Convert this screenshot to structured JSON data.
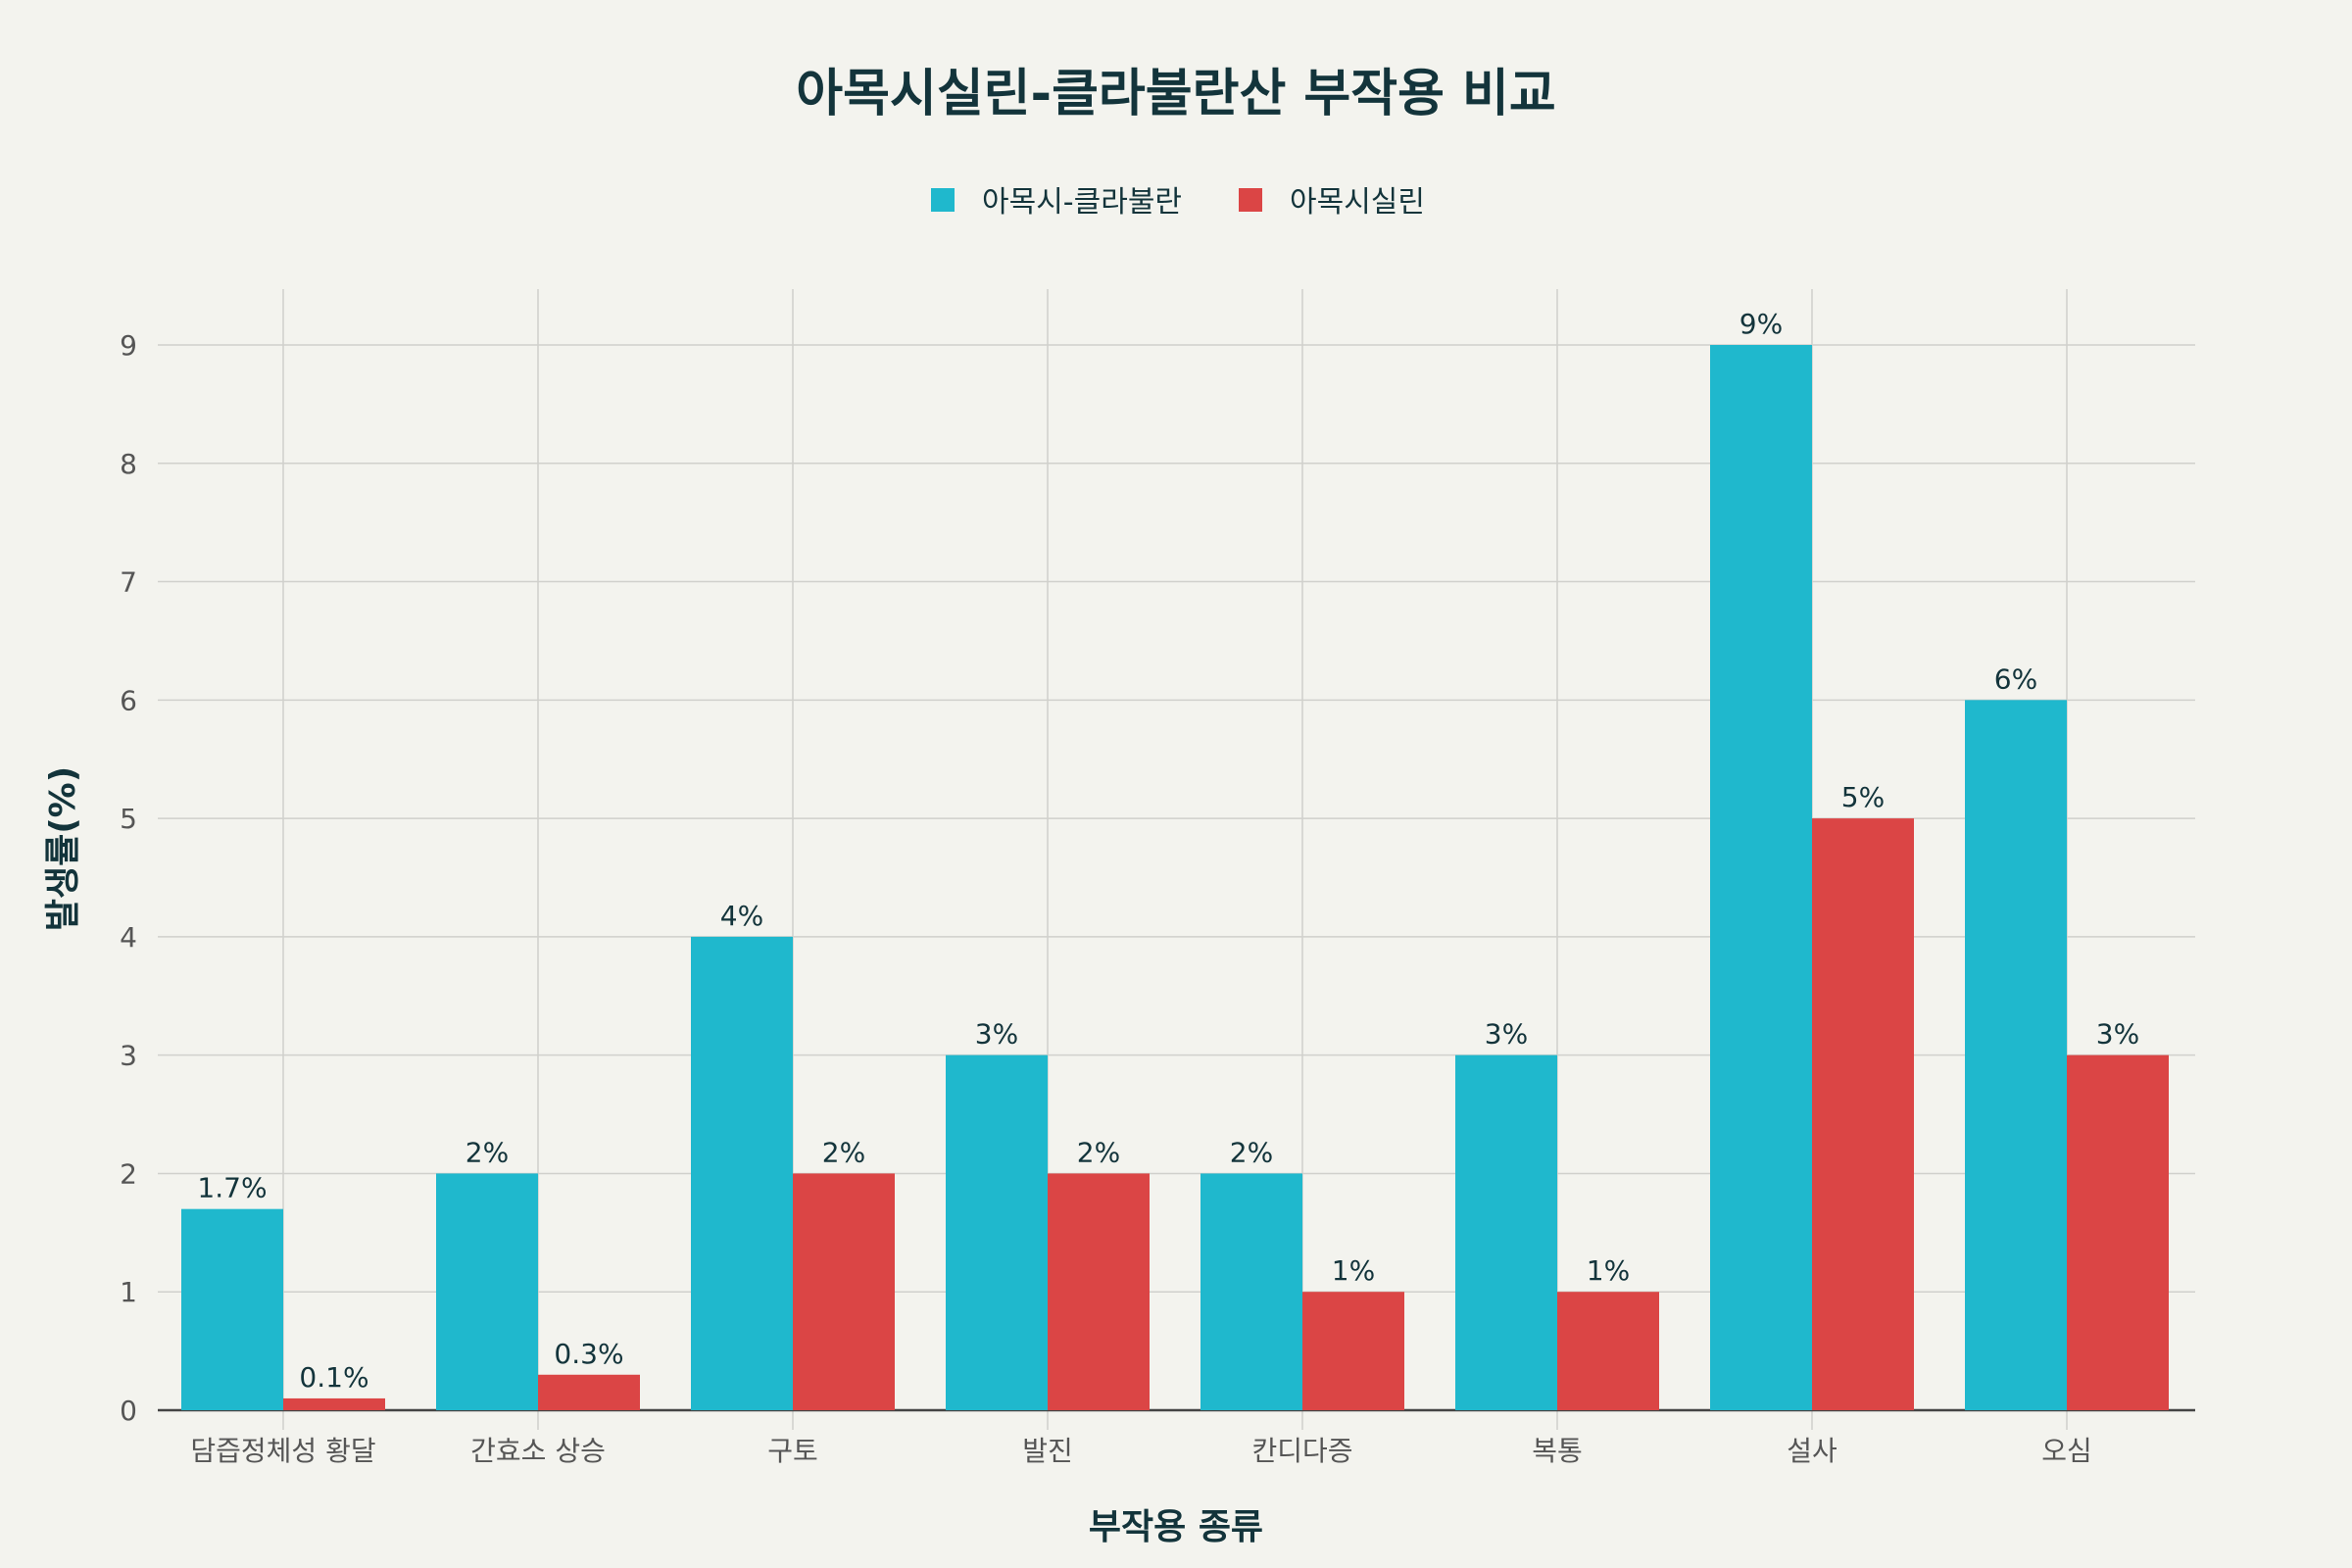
{
  "chart_data": {
    "type": "bar",
    "title": "아목시실린-클라불란산 부작용 비교",
    "xlabel": "부작용 종류",
    "ylabel": "발생률(%)",
    "categories": [
      "담즙정체성 황달",
      "간효소 상승",
      "구토",
      "발진",
      "칸디다증",
      "복통",
      "설사",
      "오심"
    ],
    "series": [
      {
        "name": "아목시-클라불란",
        "color": "#1fb8cd",
        "values": [
          1.7,
          2,
          4,
          3,
          2,
          3,
          9,
          6
        ],
        "labels": [
          "1.7%",
          "2%",
          "4%",
          "3%",
          "2%",
          "3%",
          "9%",
          "6%"
        ]
      },
      {
        "name": "아목시실린",
        "color": "#db4545",
        "values": [
          0.1,
          0.3,
          2,
          2,
          1,
          1,
          5,
          3
        ],
        "labels": [
          "0.1%",
          "0.3%",
          "2%",
          "2%",
          "1%",
          "1%",
          "5%",
          "3%"
        ]
      }
    ],
    "yticks": [
      "0",
      "1",
      "2",
      "3",
      "4",
      "5",
      "6",
      "7",
      "8",
      "9"
    ],
    "ylim": [
      0,
      9.5
    ],
    "grid": true,
    "legend_position": "top-center"
  }
}
